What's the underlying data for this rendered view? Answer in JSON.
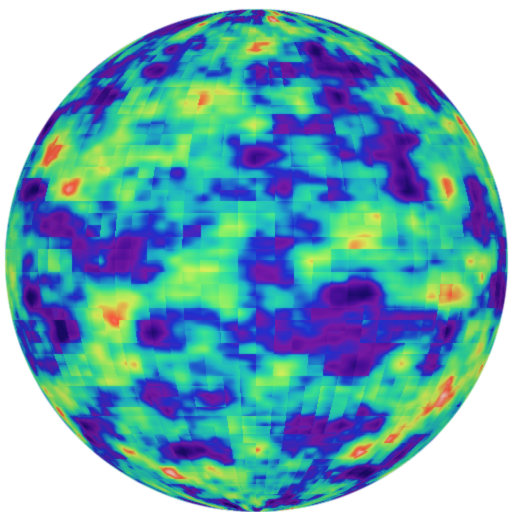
{
  "scene": {
    "subject": "sphere",
    "background_color": "#ffffff",
    "palette": [
      "#1a0a6b",
      "#4b0f9c",
      "#7a1aa8",
      "#1f2fd1",
      "#1fb7c9",
      "#2ee0a0",
      "#7ff06a",
      "#d9f25a",
      "#ff5a3c",
      "#ffc6b8"
    ]
  }
}
